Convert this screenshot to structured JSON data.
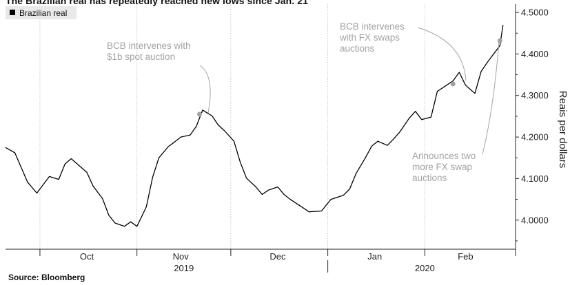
{
  "chart_data": {
    "type": "line",
    "title": "The Brazilian real has repeatedly reached new lows since Jan. 21",
    "source": "Source: Bloomberg",
    "ylabel": "Reais per dollars",
    "ylim": [
      3.93,
      4.52
    ],
    "yticks": [
      4.0,
      4.1,
      4.2,
      4.3,
      4.4,
      4.5
    ],
    "ytick_labels": [
      "4.0000",
      "4.1000",
      "4.2000",
      "4.3000",
      "4.4000",
      "4.5000"
    ],
    "month_labels": [
      "Oct",
      "Nov",
      "Dec",
      "Jan",
      "Feb"
    ],
    "year_labels": [
      "2019",
      "2020"
    ],
    "grid": "vertical dotted month gridlines, y-axis on right",
    "legend_position": "top-left",
    "series": [
      {
        "name": "Brazilian real",
        "color": "#000000",
        "x": [
          "2019-09-20",
          "2019-09-23",
          "2019-09-25",
          "2019-09-27",
          "2019-09-30",
          "2019-10-02",
          "2019-10-04",
          "2019-10-07",
          "2019-10-09",
          "2019-10-11",
          "2019-10-14",
          "2019-10-16",
          "2019-10-18",
          "2019-10-21",
          "2019-10-23",
          "2019-10-25",
          "2019-10-28",
          "2019-10-30",
          "2019-11-01",
          "2019-11-04",
          "2019-11-06",
          "2019-11-08",
          "2019-11-11",
          "2019-11-13",
          "2019-11-15",
          "2019-11-18",
          "2019-11-20",
          "2019-11-22",
          "2019-11-25",
          "2019-11-27",
          "2019-11-29",
          "2019-12-02",
          "2019-12-04",
          "2019-12-06",
          "2019-12-09",
          "2019-12-11",
          "2019-12-13",
          "2019-12-16",
          "2019-12-18",
          "2019-12-20",
          "2019-12-23",
          "2019-12-26",
          "2019-12-30",
          "2020-01-02",
          "2020-01-06",
          "2020-01-08",
          "2020-01-10",
          "2020-01-13",
          "2020-01-15",
          "2020-01-17",
          "2020-01-20",
          "2020-01-22",
          "2020-01-24",
          "2020-01-27",
          "2020-01-29",
          "2020-01-31",
          "2020-02-03",
          "2020-02-05",
          "2020-02-07",
          "2020-02-10",
          "2020-02-12",
          "2020-02-14",
          "2020-02-17",
          "2020-02-19",
          "2020-02-21",
          "2020-02-25",
          "2020-02-26"
        ],
        "values": [
          4.175,
          4.162,
          4.127,
          4.092,
          4.065,
          4.085,
          4.105,
          4.098,
          4.135,
          4.148,
          4.128,
          4.115,
          4.082,
          4.052,
          4.012,
          3.993,
          3.985,
          3.996,
          3.985,
          4.032,
          4.103,
          4.15,
          4.177,
          4.188,
          4.2,
          4.205,
          4.226,
          4.265,
          4.251,
          4.229,
          4.215,
          4.19,
          4.14,
          4.101,
          4.08,
          4.062,
          4.072,
          4.08,
          4.062,
          4.05,
          4.035,
          4.02,
          4.022,
          4.05,
          4.06,
          4.075,
          4.112,
          4.15,
          4.178,
          4.19,
          4.18,
          4.195,
          4.212,
          4.245,
          4.262,
          4.242,
          4.248,
          4.31,
          4.32,
          4.335,
          4.356,
          4.325,
          4.305,
          4.358,
          4.38,
          4.42,
          4.47
        ]
      }
    ],
    "annotations": [
      {
        "lines": [
          "BCB intervenes with",
          "$1b spot auction"
        ],
        "x": "2019-11-21",
        "y": 4.255
      },
      {
        "lines": [
          "BCB intervenes",
          "with FX swaps",
          "auctions"
        ],
        "x": "2020-02-10",
        "y": 4.328
      },
      {
        "lines": [
          "Announces two",
          "more FX swap",
          "auctions"
        ],
        "x": "2020-02-25",
        "y": 4.432
      }
    ]
  }
}
